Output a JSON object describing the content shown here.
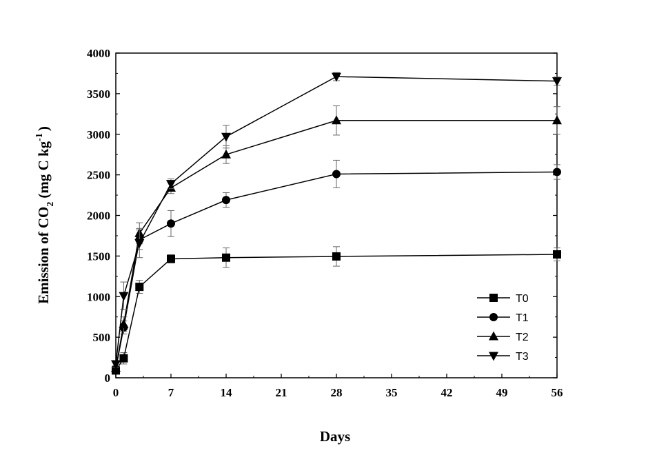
{
  "chart_data": {
    "type": "line",
    "title": "",
    "xlabel": "Days",
    "ylabel_main": "Emission of CO",
    "ylabel_sub": "2",
    "ylabel_units": "(mg C kg",
    "ylabel_sup": "-1",
    "ylabel_close": ")",
    "xlim": [
      0,
      56
    ],
    "ylim": [
      0,
      4000
    ],
    "x_ticks": [
      0,
      7,
      14,
      21,
      28,
      35,
      42,
      49,
      56
    ],
    "x_tick_labels": [
      "0",
      "7",
      "14",
      "21",
      "28",
      "35",
      "42",
      "49",
      "56"
    ],
    "y_ticks": [
      0,
      500,
      1000,
      1500,
      2000,
      2500,
      3000,
      3500,
      4000
    ],
    "y_tick_labels": [
      "0",
      "500",
      "1000",
      "1500",
      "2000",
      "2500",
      "3000",
      "3500",
      "4000"
    ],
    "legend_position": "bottom-right",
    "x": [
      0,
      1,
      3,
      7,
      14,
      28,
      56
    ],
    "series": [
      {
        "name": "T0",
        "marker": "square",
        "values": [
          90,
          240,
          1120,
          1465,
          1480,
          1495,
          1520
        ],
        "errors": [
          30,
          70,
          80,
          50,
          120,
          120,
          80
        ]
      },
      {
        "name": "T1",
        "marker": "circle",
        "values": [
          110,
          620,
          1700,
          1900,
          2190,
          2510,
          2535
        ],
        "errors": [
          30,
          80,
          120,
          160,
          90,
          170,
          90
        ]
      },
      {
        "name": "T2",
        "marker": "triangle-up",
        "values": [
          120,
          660,
          1780,
          2340,
          2750,
          3170,
          3170
        ],
        "errors": [
          30,
          90,
          130,
          70,
          110,
          180,
          170
        ]
      },
      {
        "name": "T3",
        "marker": "triangle-down",
        "values": [
          170,
          1010,
          1660,
          2390,
          2970,
          3710,
          3655
        ],
        "errors": [
          40,
          170,
          180,
          60,
          140,
          50,
          50
        ]
      }
    ]
  }
}
